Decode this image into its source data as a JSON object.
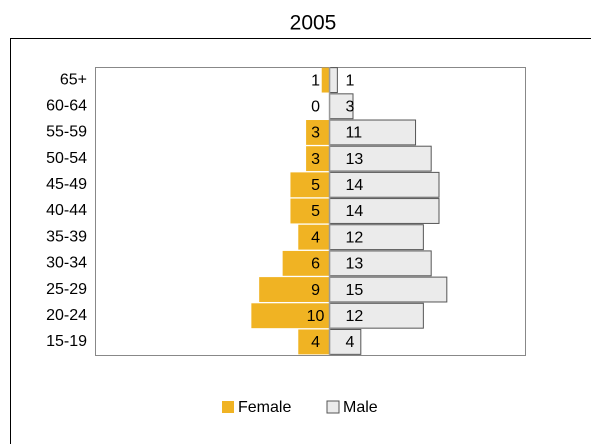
{
  "chart_data": {
    "type": "pyramid",
    "title": "2005",
    "categories": [
      "65+",
      "60-64",
      "55-59",
      "50-54",
      "45-49",
      "40-44",
      "35-39",
      "30-34",
      "25-29",
      "20-24",
      "15-19"
    ],
    "series": [
      {
        "name": "Female",
        "color": "#f0b323",
        "values": [
          1,
          0,
          3,
          3,
          5,
          5,
          4,
          6,
          9,
          10,
          4
        ]
      },
      {
        "name": "Male",
        "color": "#ebebeb",
        "values": [
          1,
          3,
          11,
          13,
          14,
          14,
          12,
          13,
          15,
          12,
          4
        ]
      }
    ],
    "xlim": [
      -30,
      25
    ]
  }
}
